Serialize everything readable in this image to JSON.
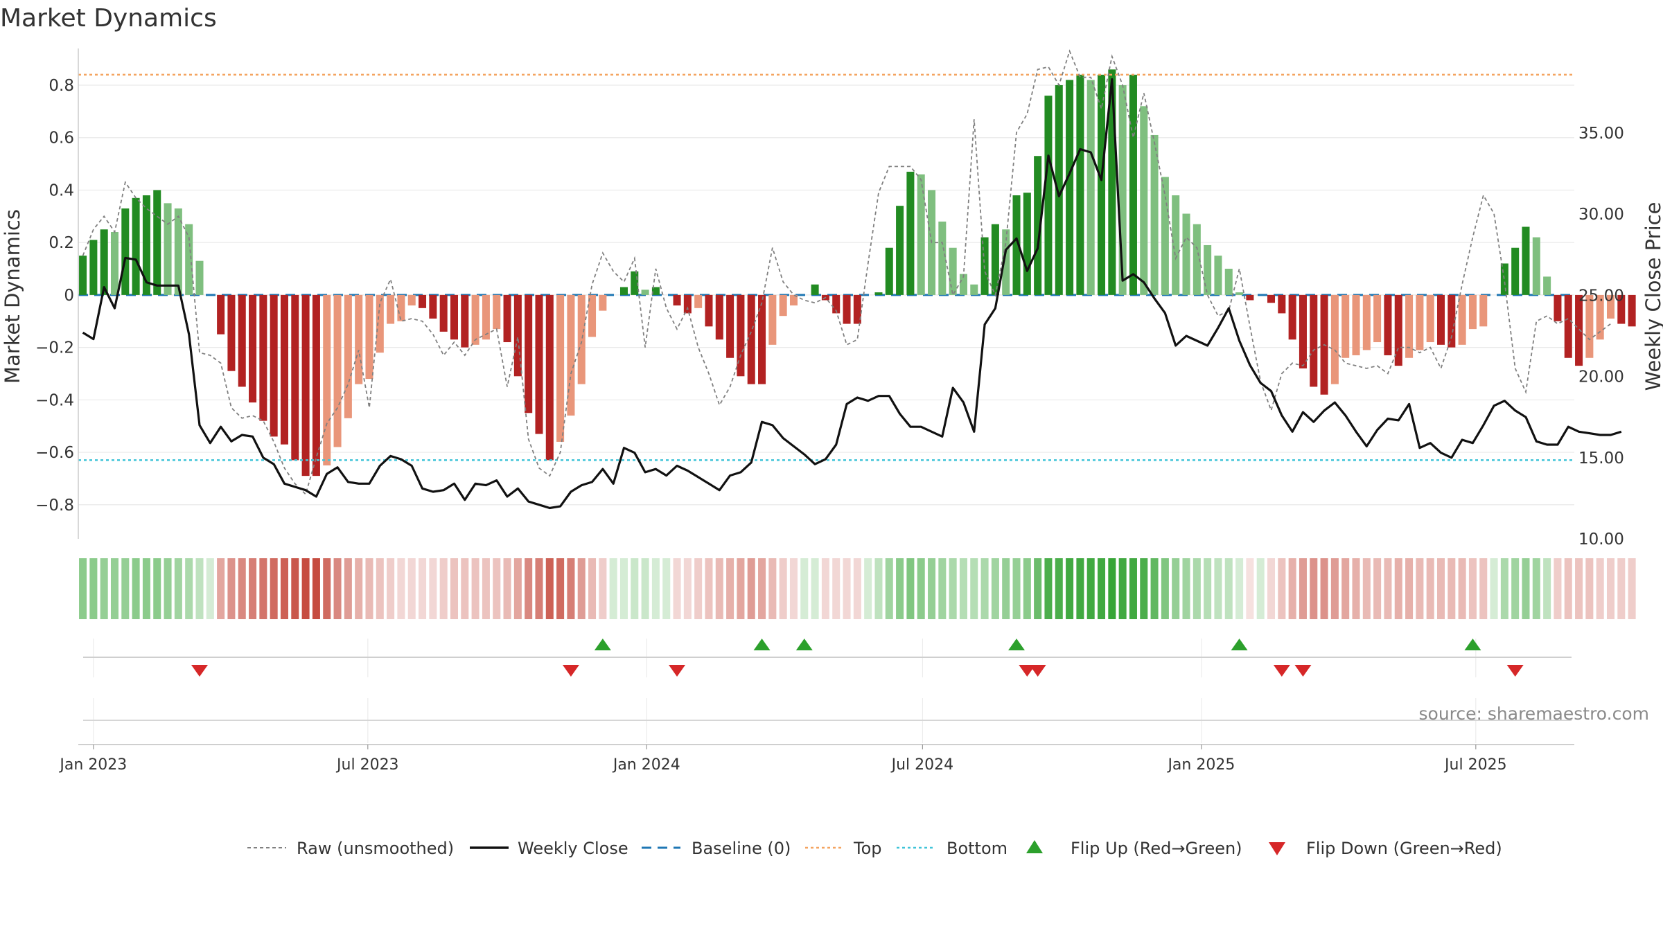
{
  "chart_data": {
    "type": "bar",
    "title": "Market Dynamics",
    "y_left_label": "Market Dynamics",
    "y_right_label": "Weekly Close Price",
    "y_left_ticks": [
      "0.8",
      "0.6",
      "0.4",
      "0.2",
      "0",
      "−0.2",
      "−0.4",
      "−0.6",
      "−0.8"
    ],
    "y_left_tick_values": [
      0.8,
      0.6,
      0.4,
      0.2,
      0,
      -0.2,
      -0.4,
      -0.6,
      -0.8
    ],
    "y_left_range": [
      -0.93,
      0.94
    ],
    "y_right_ticks": [
      "35.00",
      "30.00",
      "25.00",
      "20.00",
      "15.00",
      "10.00"
    ],
    "y_right_tick_values": [
      35,
      30,
      25,
      20,
      15,
      10
    ],
    "y_right_range": [
      10,
      40.2
    ],
    "x_ticks": [
      "Jan 2023",
      "Jul 2023",
      "Jan 2024",
      "Jul 2024",
      "Jan 2025",
      "Jul 2025"
    ],
    "x_tick_dates": [
      "2023-01-01",
      "2023-07-01",
      "2024-01-01",
      "2024-07-01",
      "2025-01-01",
      "2025-07-01"
    ],
    "x_range": [
      "2022-12-22",
      "2025-09-04"
    ],
    "first_week": "2022-12-25",
    "week_interval_days": 7,
    "top_level": 0.84,
    "bottom_level": -0.63,
    "baseline": 0,
    "bars": [
      0.15,
      0.21,
      0.25,
      0.24,
      0.33,
      0.37,
      0.38,
      0.4,
      0.35,
      0.33,
      0.27,
      0.13,
      0.0,
      -0.15,
      -0.29,
      -0.35,
      -0.41,
      -0.48,
      -0.54,
      -0.57,
      -0.63,
      -0.69,
      -0.69,
      -0.65,
      -0.58,
      -0.47,
      -0.34,
      -0.32,
      -0.22,
      -0.11,
      -0.1,
      -0.04,
      -0.05,
      -0.09,
      -0.14,
      -0.17,
      -0.2,
      -0.19,
      -0.17,
      -0.13,
      -0.18,
      -0.31,
      -0.45,
      -0.53,
      -0.63,
      -0.56,
      -0.46,
      -0.34,
      -0.16,
      -0.06,
      0.0,
      0.03,
      0.09,
      0.02,
      0.03,
      0.0,
      -0.04,
      -0.07,
      -0.05,
      -0.12,
      -0.17,
      -0.24,
      -0.31,
      -0.34,
      -0.34,
      -0.19,
      -0.08,
      -0.04,
      0.0,
      0.04,
      -0.02,
      -0.07,
      -0.11,
      -0.11,
      0.0,
      0.01,
      0.18,
      0.34,
      0.47,
      0.46,
      0.4,
      0.28,
      0.18,
      0.08,
      0.04,
      0.22,
      0.27,
      0.25,
      0.38,
      0.39,
      0.53,
      0.76,
      0.8,
      0.82,
      0.84,
      0.82,
      0.84,
      0.86,
      0.8,
      0.84,
      0.72,
      0.61,
      0.45,
      0.38,
      0.31,
      0.27,
      0.19,
      0.15,
      0.1,
      0.01,
      -0.02,
      0.0,
      -0.03,
      -0.07,
      -0.17,
      -0.28,
      -0.35,
      -0.38,
      -0.34,
      -0.24,
      -0.23,
      -0.21,
      -0.18,
      -0.23,
      -0.27,
      -0.24,
      -0.21,
      -0.18,
      -0.19,
      -0.2,
      -0.19,
      -0.13,
      -0.12,
      0.0,
      0.12,
      0.18,
      0.26,
      0.22,
      0.07,
      -0.1,
      -0.24,
      -0.27,
      -0.24,
      -0.17,
      -0.09,
      -0.11,
      -0.12
    ],
    "bar_colors_by_regime": {
      "strong_up": "#228b22",
      "weak_up": "#7fbf7f",
      "strong_down": "#b22222",
      "weak_down": "#e9967a"
    },
    "raw_unsmoothed": [
      0.15,
      0.25,
      0.3,
      0.24,
      0.43,
      0.37,
      0.33,
      0.3,
      0.27,
      0.3,
      0.22,
      -0.22,
      -0.23,
      -0.26,
      -0.43,
      -0.47,
      -0.46,
      -0.48,
      -0.56,
      -0.66,
      -0.72,
      -0.76,
      -0.62,
      -0.49,
      -0.43,
      -0.34,
      -0.21,
      -0.43,
      -0.03,
      0.06,
      -0.1,
      -0.09,
      -0.1,
      -0.15,
      -0.23,
      -0.18,
      -0.23,
      -0.17,
      -0.15,
      -0.13,
      -0.35,
      -0.16,
      -0.55,
      -0.66,
      -0.69,
      -0.6,
      -0.3,
      -0.18,
      0.04,
      0.16,
      0.09,
      0.05,
      0.14,
      -0.2,
      0.1,
      -0.05,
      -0.13,
      -0.05,
      -0.2,
      -0.3,
      -0.42,
      -0.35,
      -0.23,
      -0.14,
      -0.03,
      0.18,
      0.05,
      0.0,
      -0.02,
      -0.03,
      -0.01,
      -0.06,
      -0.19,
      -0.17,
      0.12,
      0.39,
      0.49,
      0.49,
      0.49,
      0.44,
      0.2,
      0.2,
      0.0,
      0.07,
      0.67,
      0.09,
      0.0,
      0.2,
      0.62,
      0.69,
      0.86,
      0.87,
      0.8,
      0.93,
      0.83,
      0.83,
      0.71,
      0.91,
      0.8,
      0.6,
      0.77,
      0.58,
      0.38,
      0.14,
      0.22,
      0.18,
      0.0,
      -0.08,
      -0.06,
      0.1,
      -0.12,
      -0.33,
      -0.44,
      -0.3,
      -0.26,
      -0.27,
      -0.21,
      -0.19,
      -0.21,
      -0.26,
      -0.27,
      -0.28,
      -0.27,
      -0.3,
      -0.2,
      -0.2,
      -0.22,
      -0.2,
      -0.28,
      -0.16,
      0.04,
      0.22,
      0.38,
      0.31,
      0.05,
      -0.28,
      -0.37,
      -0.1,
      -0.08,
      -0.11,
      -0.09,
      -0.13,
      -0.17,
      -0.14,
      -0.11
    ],
    "weekly_close": [
      22.7,
      22.3,
      25.5,
      24.2,
      27.3,
      27.2,
      25.8,
      25.6,
      25.6,
      25.6,
      22.6,
      17.0,
      15.9,
      16.9,
      16.0,
      16.4,
      16.3,
      15.0,
      14.6,
      13.4,
      13.2,
      13.0,
      12.6,
      14.0,
      14.4,
      13.5,
      13.4,
      13.4,
      14.5,
      15.1,
      14.9,
      14.5,
      13.1,
      12.9,
      13.0,
      13.4,
      12.4,
      13.4,
      13.3,
      13.6,
      12.6,
      13.1,
      12.3,
      12.1,
      11.9,
      12.0,
      12.9,
      13.3,
      13.5,
      14.3,
      13.4,
      15.6,
      15.3,
      14.1,
      14.3,
      13.9,
      14.5,
      14.2,
      13.8,
      13.4,
      13.0,
      13.9,
      14.1,
      14.7,
      17.2,
      17.0,
      16.2,
      15.7,
      15.2,
      14.6,
      14.9,
      15.8,
      18.3,
      18.7,
      18.5,
      18.8,
      18.8,
      17.7,
      16.9,
      16.9,
      16.6,
      16.3,
      19.3,
      18.4,
      16.6,
      23.2,
      24.2,
      27.8,
      28.5,
      26.5,
      27.9,
      33.6,
      31.1,
      32.5,
      34.0,
      33.8,
      32.1,
      38.3,
      25.9,
      26.3,
      25.8,
      24.8,
      23.9,
      21.9,
      22.5,
      22.2,
      21.9,
      23.0,
      24.2,
      22.2,
      20.7,
      19.6,
      19.1,
      17.6,
      16.6,
      17.8,
      17.2,
      17.9,
      18.4,
      17.6,
      16.6,
      15.7,
      16.7,
      17.4,
      17.3,
      18.3,
      15.6,
      15.9,
      15.3,
      15.0,
      16.1,
      15.9,
      17.0,
      18.2,
      18.5,
      17.9,
      17.5,
      16.0,
      15.8,
      15.8,
      16.9,
      16.6,
      16.5,
      16.4,
      16.4,
      16.6
    ],
    "regime_strip_alpha": [
      0.55,
      0.55,
      0.5,
      0.5,
      0.5,
      0.55,
      0.55,
      0.55,
      0.5,
      0.45,
      0.4,
      0.3,
      0.2,
      0.45,
      0.55,
      0.6,
      0.65,
      0.7,
      0.75,
      0.8,
      0.85,
      0.9,
      0.9,
      0.75,
      0.6,
      0.5,
      0.4,
      0.35,
      0.3,
      0.25,
      0.2,
      0.2,
      0.2,
      0.2,
      0.25,
      0.3,
      0.3,
      0.3,
      0.3,
      0.3,
      0.35,
      0.45,
      0.6,
      0.65,
      0.8,
      0.75,
      0.65,
      0.5,
      0.35,
      0.25,
      0.2,
      0.2,
      0.25,
      0.25,
      0.2,
      0.2,
      0.2,
      0.2,
      0.25,
      0.3,
      0.35,
      0.4,
      0.45,
      0.5,
      0.45,
      0.35,
      0.25,
      0.2,
      0.2,
      0.2,
      0.2,
      0.2,
      0.2,
      0.2,
      0.2,
      0.3,
      0.45,
      0.55,
      0.6,
      0.55,
      0.5,
      0.45,
      0.4,
      0.35,
      0.35,
      0.4,
      0.45,
      0.5,
      0.5,
      0.55,
      0.7,
      0.85,
      0.85,
      0.9,
      0.9,
      0.9,
      0.9,
      0.95,
      0.9,
      0.9,
      0.85,
      0.75,
      0.6,
      0.5,
      0.45,
      0.4,
      0.35,
      0.3,
      0.3,
      0.2,
      0.15,
      0.2,
      0.2,
      0.3,
      0.4,
      0.5,
      0.55,
      0.55,
      0.5,
      0.45,
      0.4,
      0.35,
      0.35,
      0.35,
      0.4,
      0.4,
      0.35,
      0.35,
      0.35,
      0.35,
      0.35,
      0.3,
      0.3,
      0.2,
      0.4,
      0.45,
      0.5,
      0.45,
      0.3,
      0.25,
      0.3,
      0.3,
      0.3,
      0.25,
      0.25,
      0.25,
      0.25
    ],
    "flip_up_weeks": [
      49,
      64,
      68,
      88,
      109,
      131
    ],
    "flip_down_weeks": [
      11,
      46,
      56,
      89,
      90,
      113,
      115,
      135
    ],
    "legend": {
      "raw": "Raw (unsmoothed)",
      "close": "Weekly Close",
      "baseline": "Baseline (0)",
      "top": "Top",
      "bottom": "Bottom",
      "flip_up": "Flip Up (Red→Green)",
      "flip_down": "Flip Down (Green→Red)"
    },
    "legend_position": "bottom-center",
    "source": "source: sharemaestro.com",
    "colors": {
      "strong_up": "#228b22",
      "weak_up": "#7fbf7f",
      "strong_down": "#b22222",
      "weak_down": "#e9967a",
      "raw": "#808080",
      "close": "#111111",
      "baseline": "#1f77b4",
      "top": "#f4a460",
      "bottom": "#40c4d8",
      "flip_up": "#2ca02c",
      "flip_down": "#d62728",
      "grid": "#e9e9e9",
      "strip_green": "#2ca02c",
      "strip_red": "#c0392b"
    }
  }
}
